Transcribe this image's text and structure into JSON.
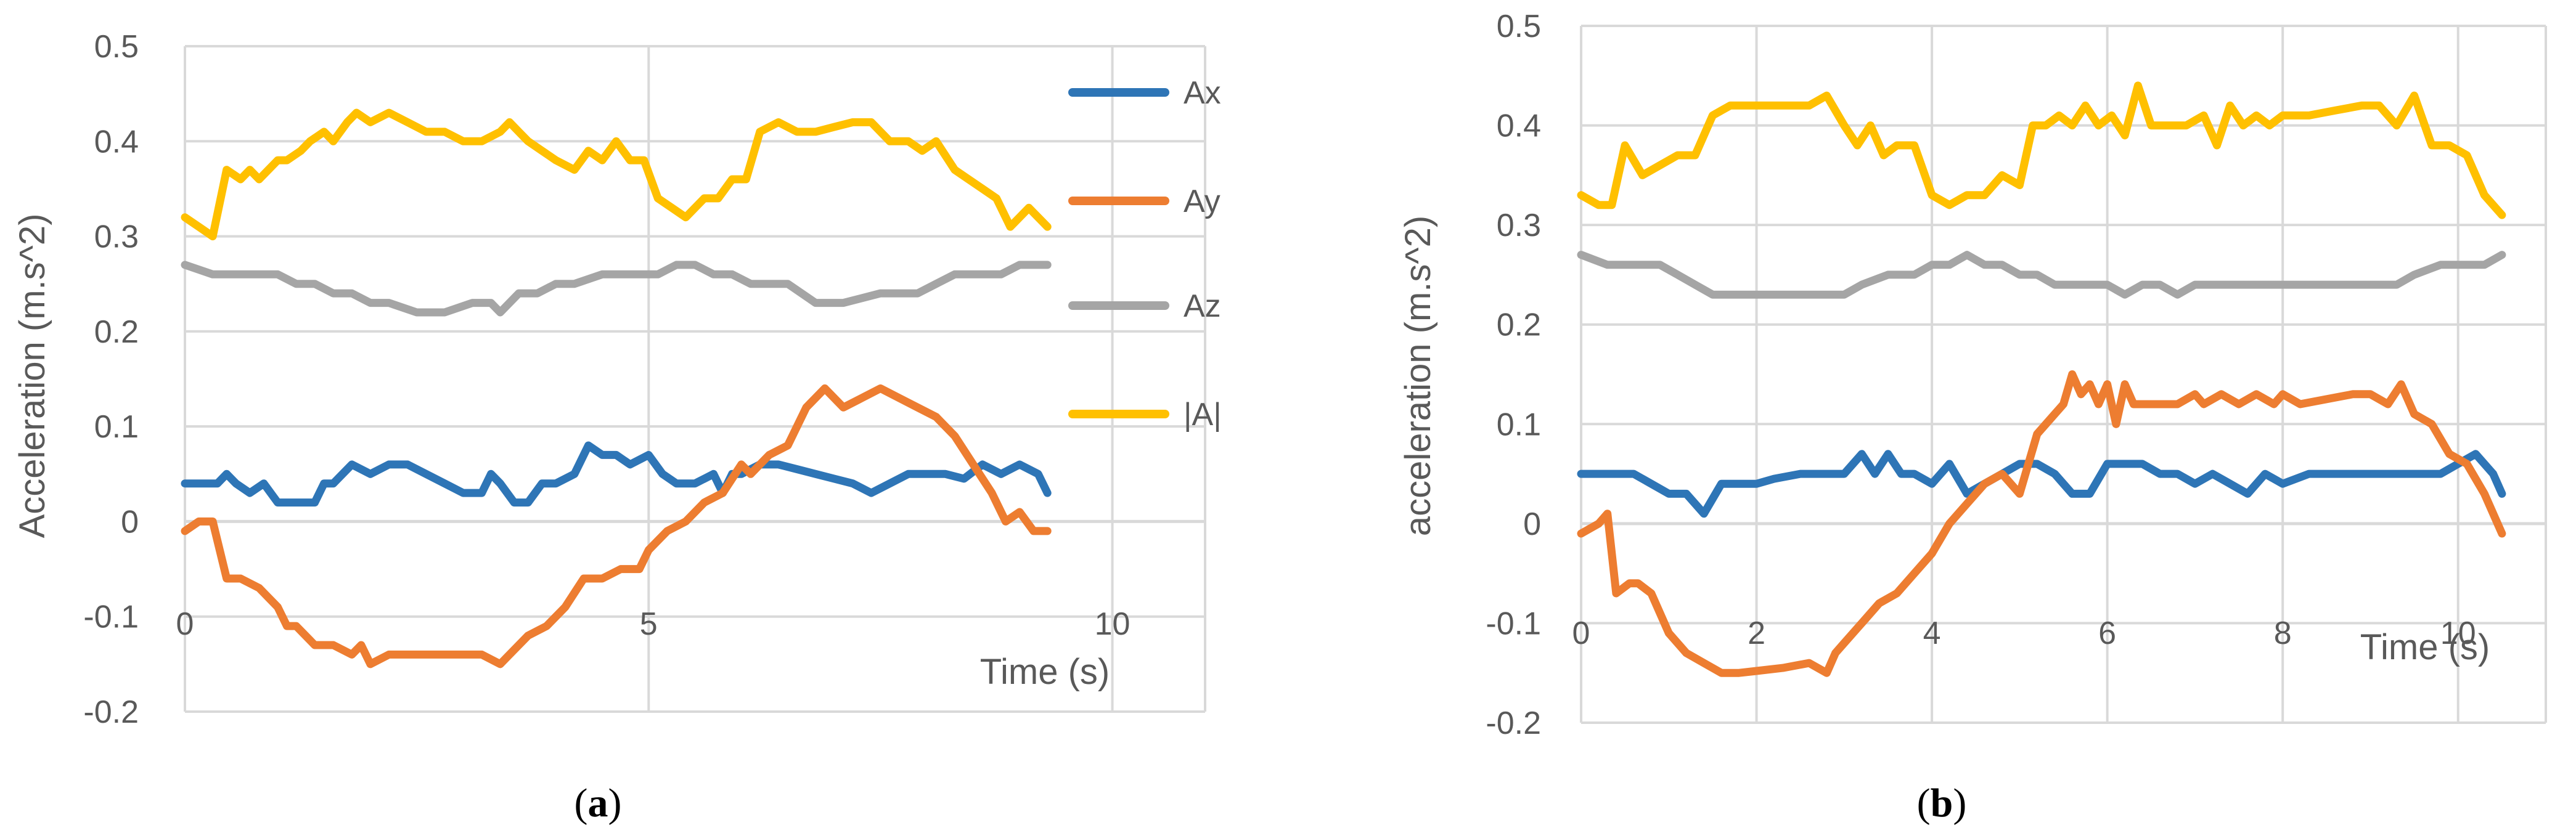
{
  "colors": {
    "Ax": "#2E75B6",
    "Ay": "#ED7D31",
    "Az": "#A5A5A5",
    "A": "#FFC000",
    "grid": "#D9D9D9",
    "axis": "#D9D9D9",
    "text": "#595959"
  },
  "legend": {
    "labels": [
      "Ax",
      "Ay",
      "Az",
      "|A|"
    ],
    "position": "right"
  },
  "chart_data": [
    {
      "type": "line",
      "panel": "a",
      "panel_label_left": "(",
      "panel_label_letter": "a",
      "panel_label_right": ")",
      "xlabel": "Time (s)",
      "ylabel": "Acceleration (m.s^2)",
      "xlim": [
        0,
        11
      ],
      "ylim": [
        -0.2,
        0.5
      ],
      "xticks": [
        0,
        5,
        10
      ],
      "yticks": [
        -0.2,
        -0.1,
        0,
        0.1,
        0.2,
        0.3,
        0.4,
        0.5
      ],
      "ytick_labels": [
        "-0.2",
        "-0.1",
        "0",
        "0.1",
        "0.2",
        "0.3",
        "0.4",
        "0.5"
      ],
      "xtick_labels": [
        "0",
        "5",
        "10"
      ],
      "series": [
        {
          "name": "Ax",
          "key": "Ax",
          "x": [
            0,
            0.35,
            0.45,
            0.55,
            0.7,
            0.85,
            1.0,
            1.2,
            1.4,
            1.5,
            1.6,
            1.8,
            2.0,
            2.2,
            2.4,
            2.6,
            2.8,
            3.0,
            3.2,
            3.3,
            3.4,
            3.55,
            3.7,
            3.85,
            4.0,
            4.2,
            4.35,
            4.5,
            4.65,
            4.8,
            5.0,
            5.15,
            5.3,
            5.5,
            5.7,
            5.8,
            5.9,
            6.0,
            6.2,
            6.4,
            6.6,
            6.8,
            7.0,
            7.2,
            7.4,
            7.6,
            7.8,
            8.0,
            8.2,
            8.4,
            8.6,
            8.8,
            9.0,
            9.2,
            9.3
          ],
          "values": [
            0.04,
            0.04,
            0.05,
            0.04,
            0.03,
            0.04,
            0.02,
            0.02,
            0.02,
            0.04,
            0.04,
            0.06,
            0.05,
            0.06,
            0.06,
            0.05,
            0.04,
            0.03,
            0.03,
            0.05,
            0.04,
            0.02,
            0.02,
            0.04,
            0.04,
            0.05,
            0.08,
            0.07,
            0.07,
            0.06,
            0.07,
            0.05,
            0.04,
            0.04,
            0.05,
            0.03,
            0.05,
            0.05,
            0.06,
            0.06,
            0.055,
            0.05,
            0.045,
            0.04,
            0.03,
            0.04,
            0.05,
            0.05,
            0.05,
            0.045,
            0.06,
            0.05,
            0.06,
            0.05,
            0.03
          ]
        },
        {
          "name": "Ay",
          "key": "Ay",
          "x": [
            0,
            0.15,
            0.3,
            0.45,
            0.6,
            0.8,
            1.0,
            1.1,
            1.2,
            1.4,
            1.6,
            1.8,
            1.9,
            2.0,
            2.2,
            2.4,
            2.6,
            2.8,
            3.0,
            3.2,
            3.4,
            3.5,
            3.7,
            3.9,
            4.1,
            4.3,
            4.5,
            4.7,
            4.9,
            5.0,
            5.2,
            5.4,
            5.6,
            5.8,
            6.0,
            6.1,
            6.3,
            6.5,
            6.7,
            6.9,
            7.1,
            7.3,
            7.5,
            7.7,
            7.9,
            8.1,
            8.3,
            8.5,
            8.7,
            8.85,
            9.0,
            9.15,
            9.3
          ],
          "values": [
            -0.01,
            0.0,
            0.0,
            -0.06,
            -0.06,
            -0.07,
            -0.09,
            -0.11,
            -0.11,
            -0.13,
            -0.13,
            -0.14,
            -0.13,
            -0.15,
            -0.14,
            -0.14,
            -0.14,
            -0.14,
            -0.14,
            -0.14,
            -0.15,
            -0.14,
            -0.12,
            -0.11,
            -0.09,
            -0.06,
            -0.06,
            -0.05,
            -0.05,
            -0.03,
            -0.01,
            0.0,
            0.02,
            0.03,
            0.06,
            0.05,
            0.07,
            0.08,
            0.12,
            0.14,
            0.12,
            0.13,
            0.14,
            0.13,
            0.12,
            0.11,
            0.09,
            0.06,
            0.03,
            0.0,
            0.01,
            -0.01,
            -0.01
          ]
        },
        {
          "name": "Az",
          "key": "Az",
          "x": [
            0,
            0.3,
            0.5,
            0.8,
            1.0,
            1.2,
            1.4,
            1.6,
            1.8,
            2.0,
            2.2,
            2.5,
            2.8,
            3.1,
            3.3,
            3.4,
            3.6,
            3.8,
            4.0,
            4.2,
            4.5,
            4.8,
            5.1,
            5.3,
            5.5,
            5.7,
            5.9,
            6.1,
            6.3,
            6.5,
            6.8,
            7.1,
            7.5,
            7.9,
            8.1,
            8.3,
            8.5,
            8.8,
            9.0,
            9.3
          ],
          "values": [
            0.27,
            0.26,
            0.26,
            0.26,
            0.26,
            0.25,
            0.25,
            0.24,
            0.24,
            0.23,
            0.23,
            0.22,
            0.22,
            0.23,
            0.23,
            0.22,
            0.24,
            0.24,
            0.25,
            0.25,
            0.26,
            0.26,
            0.26,
            0.27,
            0.27,
            0.26,
            0.26,
            0.25,
            0.25,
            0.25,
            0.23,
            0.23,
            0.24,
            0.24,
            0.25,
            0.26,
            0.26,
            0.26,
            0.27,
            0.27
          ]
        },
        {
          "name": "|A|",
          "key": "A",
          "x": [
            0,
            0.15,
            0.3,
            0.45,
            0.6,
            0.7,
            0.8,
            1.0,
            1.1,
            1.25,
            1.35,
            1.5,
            1.6,
            1.75,
            1.85,
            2.0,
            2.2,
            2.4,
            2.6,
            2.8,
            3.0,
            3.2,
            3.4,
            3.5,
            3.6,
            3.7,
            3.85,
            4.0,
            4.2,
            4.35,
            4.5,
            4.65,
            4.8,
            4.95,
            5.1,
            5.25,
            5.4,
            5.6,
            5.75,
            5.9,
            6.05,
            6.2,
            6.4,
            6.6,
            6.8,
            7.0,
            7.2,
            7.4,
            7.6,
            7.8,
            7.95,
            8.1,
            8.3,
            8.45,
            8.6,
            8.75,
            8.9,
            9.1,
            9.3
          ],
          "values": [
            0.32,
            0.31,
            0.3,
            0.37,
            0.36,
            0.37,
            0.36,
            0.38,
            0.38,
            0.39,
            0.4,
            0.41,
            0.4,
            0.42,
            0.43,
            0.42,
            0.43,
            0.42,
            0.41,
            0.41,
            0.4,
            0.4,
            0.41,
            0.42,
            0.41,
            0.4,
            0.39,
            0.38,
            0.37,
            0.39,
            0.38,
            0.4,
            0.38,
            0.38,
            0.34,
            0.33,
            0.32,
            0.34,
            0.34,
            0.36,
            0.36,
            0.41,
            0.42,
            0.41,
            0.41,
            0.415,
            0.42,
            0.42,
            0.4,
            0.4,
            0.39,
            0.4,
            0.37,
            0.36,
            0.35,
            0.34,
            0.31,
            0.33,
            0.31
          ]
        }
      ]
    },
    {
      "type": "line",
      "panel": "b",
      "panel_label_left": "(",
      "panel_label_letter": "b",
      "panel_label_right": ")",
      "xlabel": "Time (s)",
      "ylabel": "acceleration (m.s^2)",
      "xlim": [
        0,
        11
      ],
      "ylim": [
        -0.2,
        0.5
      ],
      "xticks": [
        0,
        2,
        4,
        6,
        8,
        10
      ],
      "yticks": [
        -0.2,
        -0.1,
        0,
        0.1,
        0.2,
        0.3,
        0.4,
        0.5
      ],
      "ytick_labels": [
        "-0.2",
        "-0.1",
        "0",
        "0.1",
        "0.2",
        "0.3",
        "0.4",
        "0.5"
      ],
      "xtick_labels": [
        "0",
        "2",
        "4",
        "6",
        "8",
        "10"
      ],
      "series": [
        {
          "name": "Ax",
          "key": "Ax",
          "x": [
            0,
            0.3,
            0.6,
            0.8,
            1.0,
            1.2,
            1.4,
            1.6,
            1.8,
            2.0,
            2.2,
            2.5,
            2.8,
            3.0,
            3.2,
            3.35,
            3.5,
            3.65,
            3.8,
            4.0,
            4.2,
            4.4,
            4.6,
            4.8,
            5.0,
            5.2,
            5.4,
            5.6,
            5.8,
            6.0,
            6.2,
            6.4,
            6.6,
            6.8,
            7.0,
            7.2,
            7.4,
            7.6,
            7.8,
            8.0,
            8.3,
            8.6,
            9.0,
            9.2,
            9.4,
            9.6,
            9.8,
            10.0,
            10.2,
            10.4,
            10.5
          ],
          "values": [
            0.05,
            0.05,
            0.05,
            0.04,
            0.03,
            0.03,
            0.01,
            0.04,
            0.04,
            0.04,
            0.045,
            0.05,
            0.05,
            0.05,
            0.07,
            0.05,
            0.07,
            0.05,
            0.05,
            0.04,
            0.06,
            0.03,
            0.04,
            0.05,
            0.06,
            0.06,
            0.05,
            0.03,
            0.03,
            0.06,
            0.06,
            0.06,
            0.05,
            0.05,
            0.04,
            0.05,
            0.04,
            0.03,
            0.05,
            0.04,
            0.05,
            0.05,
            0.05,
            0.05,
            0.05,
            0.05,
            0.05,
            0.06,
            0.07,
            0.05,
            0.03
          ]
        },
        {
          "name": "Ay",
          "key": "Ay",
          "x": [
            0,
            0.2,
            0.3,
            0.4,
            0.55,
            0.65,
            0.8,
            1.0,
            1.2,
            1.4,
            1.6,
            1.8,
            2.0,
            2.3,
            2.6,
            2.8,
            2.9,
            3.0,
            3.2,
            3.4,
            3.6,
            3.8,
            4.0,
            4.2,
            4.4,
            4.6,
            4.8,
            5.0,
            5.2,
            5.4,
            5.5,
            5.6,
            5.7,
            5.8,
            5.9,
            6.0,
            6.1,
            6.2,
            6.3,
            6.5,
            6.8,
            7.0,
            7.1,
            7.3,
            7.5,
            7.7,
            7.9,
            8.0,
            8.2,
            8.5,
            8.8,
            9.0,
            9.2,
            9.35,
            9.5,
            9.7,
            9.9,
            10.1,
            10.3,
            10.5
          ],
          "values": [
            -0.01,
            0.0,
            0.01,
            -0.07,
            -0.06,
            -0.06,
            -0.07,
            -0.11,
            -0.13,
            -0.14,
            -0.15,
            -0.15,
            -0.148,
            -0.145,
            -0.14,
            -0.15,
            -0.13,
            -0.12,
            -0.1,
            -0.08,
            -0.07,
            -0.05,
            -0.03,
            0.0,
            0.02,
            0.04,
            0.05,
            0.03,
            0.09,
            0.11,
            0.12,
            0.15,
            0.13,
            0.14,
            0.12,
            0.14,
            0.1,
            0.14,
            0.12,
            0.12,
            0.12,
            0.13,
            0.12,
            0.13,
            0.12,
            0.13,
            0.12,
            0.13,
            0.12,
            0.125,
            0.13,
            0.13,
            0.12,
            0.14,
            0.11,
            0.1,
            0.07,
            0.06,
            0.03,
            -0.01
          ]
        },
        {
          "name": "Az",
          "key": "Az",
          "x": [
            0,
            0.3,
            0.6,
            0.9,
            1.1,
            1.3,
            1.5,
            1.7,
            2.0,
            2.4,
            2.8,
            3.0,
            3.2,
            3.5,
            3.8,
            4.0,
            4.2,
            4.4,
            4.6,
            4.8,
            5.0,
            5.2,
            5.4,
            5.6,
            5.8,
            6.0,
            6.2,
            6.4,
            6.6,
            6.8,
            7.0,
            7.5,
            8.0,
            8.5,
            9.0,
            9.3,
            9.5,
            9.8,
            10.0,
            10.3,
            10.5
          ],
          "values": [
            0.27,
            0.26,
            0.26,
            0.26,
            0.25,
            0.24,
            0.23,
            0.23,
            0.23,
            0.23,
            0.23,
            0.23,
            0.24,
            0.25,
            0.25,
            0.26,
            0.26,
            0.27,
            0.26,
            0.26,
            0.25,
            0.25,
            0.24,
            0.24,
            0.24,
            0.24,
            0.23,
            0.24,
            0.24,
            0.23,
            0.24,
            0.24,
            0.24,
            0.24,
            0.24,
            0.24,
            0.25,
            0.26,
            0.26,
            0.26,
            0.27
          ]
        },
        {
          "name": "|A|",
          "key": "A",
          "x": [
            0,
            0.2,
            0.35,
            0.5,
            0.7,
            0.9,
            1.1,
            1.3,
            1.5,
            1.7,
            2.0,
            2.3,
            2.6,
            2.8,
            3.0,
            3.15,
            3.3,
            3.45,
            3.6,
            3.8,
            4.0,
            4.2,
            4.4,
            4.6,
            4.8,
            5.0,
            5.15,
            5.3,
            5.45,
            5.6,
            5.75,
            5.9,
            6.05,
            6.2,
            6.35,
            6.5,
            6.7,
            6.9,
            7.1,
            7.25,
            7.4,
            7.55,
            7.7,
            7.85,
            8.0,
            8.3,
            8.6,
            8.9,
            9.1,
            9.3,
            9.5,
            9.7,
            9.9,
            10.1,
            10.3,
            10.5
          ],
          "values": [
            0.33,
            0.32,
            0.32,
            0.38,
            0.35,
            0.36,
            0.37,
            0.37,
            0.41,
            0.42,
            0.42,
            0.42,
            0.42,
            0.43,
            0.4,
            0.38,
            0.4,
            0.37,
            0.38,
            0.38,
            0.33,
            0.32,
            0.33,
            0.33,
            0.35,
            0.34,
            0.4,
            0.4,
            0.41,
            0.4,
            0.42,
            0.4,
            0.41,
            0.39,
            0.44,
            0.4,
            0.4,
            0.4,
            0.41,
            0.38,
            0.42,
            0.4,
            0.41,
            0.4,
            0.41,
            0.41,
            0.415,
            0.42,
            0.42,
            0.4,
            0.43,
            0.38,
            0.38,
            0.37,
            0.33,
            0.31
          ]
        }
      ]
    }
  ]
}
